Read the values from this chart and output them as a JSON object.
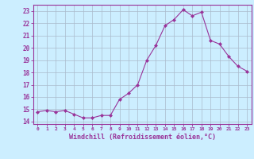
{
  "x": [
    0,
    1,
    2,
    3,
    4,
    5,
    6,
    7,
    8,
    9,
    10,
    11,
    12,
    13,
    14,
    15,
    16,
    17,
    18,
    19,
    20,
    21,
    22,
    23
  ],
  "y": [
    14.8,
    14.9,
    14.8,
    14.9,
    14.6,
    14.3,
    14.3,
    14.5,
    14.5,
    15.8,
    16.3,
    17.0,
    19.0,
    20.2,
    21.8,
    22.3,
    23.1,
    22.6,
    22.9,
    20.6,
    20.3,
    19.3,
    18.5,
    18.1
  ],
  "line_color": "#993399",
  "marker": "D",
  "marker_size": 2,
  "bg_color": "#cceeff",
  "grid_color": "#aabbcc",
  "xlabel": "Windchill (Refroidissement éolien,°C)",
  "xlabel_color": "#993399",
  "tick_color": "#993399",
  "ylabel_ticks": [
    14,
    15,
    16,
    17,
    18,
    19,
    20,
    21,
    22,
    23
  ],
  "xlim": [
    -0.5,
    23.5
  ],
  "ylim": [
    13.8,
    23.5
  ],
  "xtick_labels": [
    "0",
    "1",
    "2",
    "3",
    "4",
    "5",
    "6",
    "7",
    "8",
    "9",
    "10",
    "11",
    "12",
    "13",
    "14",
    "15",
    "16",
    "17",
    "18",
    "19",
    "20",
    "21",
    "22",
    "23"
  ]
}
